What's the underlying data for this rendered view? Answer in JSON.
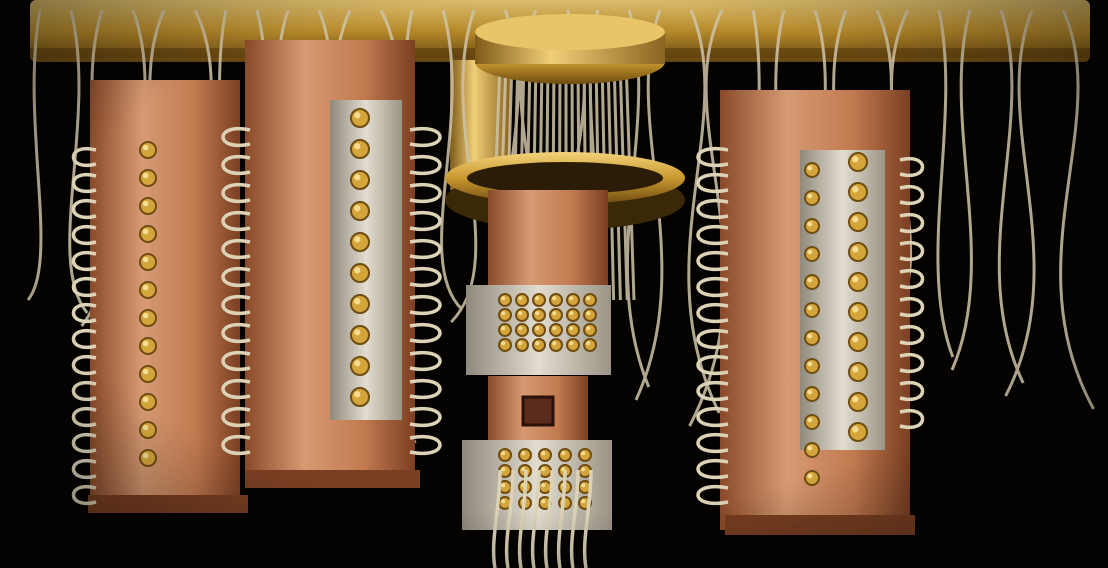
{
  "scene": {
    "subject": "dilution-refrigerator-wiring-assembly",
    "colors": {
      "background": "#050302",
      "copper": "#c47a4e",
      "copper_light": "#e0a27a",
      "copper_dark": "#7a3f22",
      "gold": "#d4a53a",
      "gold_light": "#f3d27a",
      "gold_dark": "#7e5a17",
      "steel": "#c9c4b8",
      "steel_dark": "#8f897c",
      "cable": "#cfc4a8",
      "cable_shadow": "#6e6450",
      "chip": "#5a2a1c"
    }
  }
}
